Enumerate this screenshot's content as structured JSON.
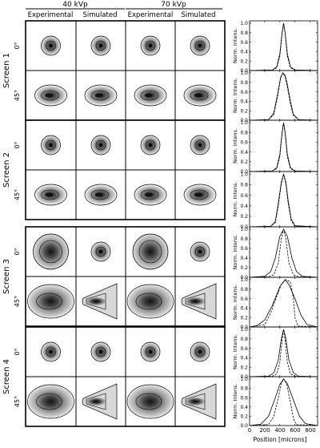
{
  "header": {
    "kvp_groups": [
      "40 kVp",
      "70 kVp"
    ],
    "columns": [
      "Experimental",
      "Simulated",
      "Experimental",
      "Simulated"
    ]
  },
  "screens": [
    {
      "label": "Screen 1",
      "angles": [
        "0°",
        "45°"
      ]
    },
    {
      "label": "Screen 2",
      "angles": [
        "0°",
        "45°"
      ]
    },
    {
      "label": "Screen 3",
      "angles": [
        "0°",
        "45°"
      ]
    },
    {
      "label": "Screen 4",
      "angles": [
        "0°",
        "45°"
      ]
    }
  ],
  "plots": {
    "ylabel": "Norm. Intens.",
    "xlabel": "Position [microns]",
    "ytick_labels": [
      "0.0",
      "0.2",
      "0.4",
      "0.6",
      "0.8",
      "1.0"
    ],
    "xtick_labels": [
      "0",
      "200",
      "400",
      "600",
      "800"
    ]
  },
  "chart_data": {
    "type": "line",
    "xlabel": "Position [microns]",
    "ylabel": "Norm. Intens.",
    "xlim": [
      0,
      900
    ],
    "ylim": [
      0,
      1.05
    ],
    "xticks": [
      0,
      200,
      400,
      600,
      800
    ],
    "yticks": [
      0.0,
      0.2,
      0.4,
      0.6,
      0.8,
      1.0
    ],
    "line_styles": [
      "solid",
      "dashed"
    ],
    "panels": [
      {
        "screen": "Screen 1",
        "angle": "0°",
        "series": [
          {
            "x": [
              0,
              300,
              360,
              400,
              430,
              450,
              470,
              500,
              540,
              600,
              900
            ],
            "y": [
              0,
              0.01,
              0.08,
              0.35,
              0.8,
              1.0,
              0.8,
              0.35,
              0.08,
              0.01,
              0
            ]
          },
          {
            "x": [
              0,
              300,
              360,
              400,
              430,
              450,
              470,
              500,
              540,
              600,
              900
            ],
            "y": [
              0,
              0.01,
              0.06,
              0.3,
              0.78,
              1.0,
              0.78,
              0.3,
              0.06,
              0.01,
              0
            ]
          }
        ]
      },
      {
        "screen": "Screen 1",
        "angle": "45°",
        "series": [
          {
            "x": [
              0,
              250,
              320,
              370,
              410,
              440,
              470,
              500,
              540,
              580,
              650,
              900
            ],
            "y": [
              0,
              0.01,
              0.15,
              0.55,
              0.9,
              1.0,
              0.95,
              0.75,
              0.4,
              0.12,
              0.01,
              0
            ]
          },
          {
            "x": [
              0,
              250,
              320,
              370,
              410,
              440,
              470,
              500,
              540,
              580,
              650,
              900
            ],
            "y": [
              0,
              0.01,
              0.12,
              0.5,
              0.88,
              1.0,
              0.92,
              0.7,
              0.35,
              0.1,
              0.01,
              0
            ]
          }
        ]
      },
      {
        "screen": "Screen 2",
        "angle": "0°",
        "series": [
          {
            "x": [
              0,
              300,
              360,
              400,
              430,
              450,
              470,
              500,
              540,
              600,
              900
            ],
            "y": [
              0,
              0.01,
              0.08,
              0.35,
              0.8,
              1.0,
              0.8,
              0.35,
              0.08,
              0.01,
              0
            ]
          },
          {
            "x": [
              0,
              300,
              360,
              400,
              430,
              450,
              470,
              500,
              540,
              600,
              900
            ],
            "y": [
              0,
              0.01,
              0.06,
              0.3,
              0.78,
              1.0,
              0.78,
              0.3,
              0.06,
              0.01,
              0
            ]
          }
        ]
      },
      {
        "screen": "Screen 2",
        "angle": "45°",
        "series": [
          {
            "x": [
              0,
              280,
              340,
              380,
              420,
              450,
              480,
              510,
              550,
              600,
              900
            ],
            "y": [
              0,
              0.01,
              0.1,
              0.45,
              0.85,
              1.0,
              0.85,
              0.5,
              0.15,
              0.02,
              0
            ]
          },
          {
            "x": [
              0,
              280,
              340,
              380,
              420,
              450,
              480,
              510,
              550,
              600,
              900
            ],
            "y": [
              0,
              0.01,
              0.08,
              0.4,
              0.82,
              1.0,
              0.82,
              0.45,
              0.12,
              0.01,
              0
            ]
          }
        ]
      },
      {
        "screen": "Screen 3",
        "angle": "0°",
        "series": [
          {
            "x": [
              0,
              200,
              280,
              340,
              400,
              450,
              500,
              560,
              620,
              700,
              900
            ],
            "y": [
              0,
              0.02,
              0.12,
              0.4,
              0.85,
              1.0,
              0.85,
              0.4,
              0.12,
              0.02,
              0
            ]
          },
          {
            "x": [
              0,
              250,
              320,
              380,
              420,
              450,
              480,
              520,
              580,
              650,
              900
            ],
            "y": [
              0,
              0.01,
              0.05,
              0.3,
              0.8,
              1.0,
              0.8,
              0.3,
              0.05,
              0.01,
              0
            ]
          }
        ]
      },
      {
        "screen": "Screen 3",
        "angle": "45°",
        "series": [
          {
            "x": [
              0,
              100,
              200,
              300,
              400,
              470,
              520,
              600,
              680,
              760,
              900
            ],
            "y": [
              0,
              0.03,
              0.15,
              0.45,
              0.85,
              1.0,
              0.9,
              0.6,
              0.25,
              0.05,
              0
            ]
          },
          {
            "x": [
              0,
              200,
              280,
              360,
              420,
              480,
              540,
              580,
              600,
              640,
              900
            ],
            "y": [
              0,
              0.05,
              0.3,
              0.65,
              0.9,
              1.0,
              0.95,
              0.6,
              0.2,
              0.02,
              0
            ]
          }
        ]
      },
      {
        "screen": "Screen 4",
        "angle": "0°",
        "series": [
          {
            "x": [
              0,
              250,
              320,
              380,
              420,
              450,
              480,
              520,
              580,
              650,
              900
            ],
            "y": [
              0,
              0.01,
              0.08,
              0.35,
              0.8,
              1.0,
              0.8,
              0.35,
              0.08,
              0.01,
              0
            ]
          },
          {
            "x": [
              0,
              300,
              360,
              400,
              430,
              450,
              470,
              500,
              540,
              600,
              900
            ],
            "y": [
              0,
              0.01,
              0.06,
              0.3,
              0.78,
              1.0,
              0.78,
              0.3,
              0.06,
              0.01,
              0
            ]
          }
        ]
      },
      {
        "screen": "Screen 4",
        "angle": "45°",
        "series": [
          {
            "x": [
              0,
              150,
              250,
              330,
              400,
              450,
              500,
              580,
              660,
              740,
              900
            ],
            "y": [
              0,
              0.03,
              0.2,
              0.55,
              0.88,
              1.0,
              0.9,
              0.55,
              0.2,
              0.04,
              0
            ]
          },
          {
            "x": [
              0,
              250,
              320,
              380,
              420,
              450,
              490,
              540,
              580,
              620,
              900
            ],
            "y": [
              0,
              0.02,
              0.2,
              0.6,
              0.9,
              1.0,
              0.9,
              0.5,
              0.15,
              0.02,
              0
            ]
          }
        ]
      }
    ]
  }
}
